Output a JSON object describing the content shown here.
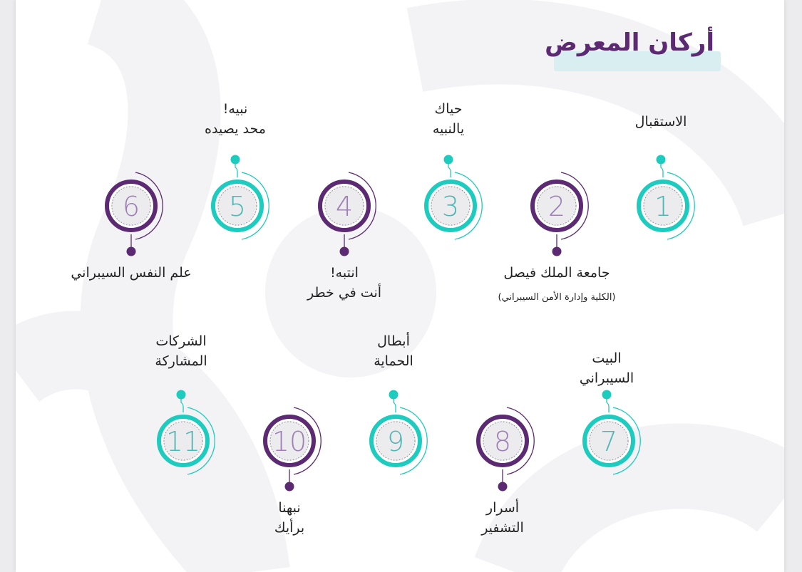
{
  "title": "أركان المعرض",
  "colors": {
    "teal": "#1ecbbf",
    "purple": "#5b2a72",
    "num_teal": "#4fb7b5",
    "num_purple": "#9e7fb6",
    "inner_fill": "#ecebee"
  },
  "stations": [
    {
      "number": "1",
      "label": [
        "الاستقبال"
      ],
      "subtitle": "",
      "color": "teal"
    },
    {
      "number": "2",
      "label": [
        "جامعة الملك فيصل"
      ],
      "subtitle": "(الكلية وإدارة الأمن السيبراني)",
      "color": "purple"
    },
    {
      "number": "3",
      "label": [
        "حياك",
        "يالنبيه"
      ],
      "subtitle": "",
      "color": "teal"
    },
    {
      "number": "4",
      "label": [
        "انتبه!",
        "أنت في خطر"
      ],
      "subtitle": "",
      "color": "purple"
    },
    {
      "number": "5",
      "label": [
        "نبيه!",
        "محد يصيده"
      ],
      "subtitle": "",
      "color": "teal"
    },
    {
      "number": "6",
      "label": [
        "علم النفس السيبراني"
      ],
      "subtitle": "",
      "color": "purple"
    },
    {
      "number": "7",
      "label": [
        "البيت",
        "السيبراني"
      ],
      "subtitle": "",
      "color": "teal"
    },
    {
      "number": "8",
      "label": [
        "أسرار",
        "التشفير"
      ],
      "subtitle": "",
      "color": "purple"
    },
    {
      "number": "9",
      "label": [
        "أبطال",
        "الحماية"
      ],
      "subtitle": "",
      "color": "teal"
    },
    {
      "number": "10",
      "label": [
        "نبهنا",
        "برأيك"
      ],
      "subtitle": "",
      "color": "purple"
    },
    {
      "number": "11",
      "label": [
        "الشركات",
        "المشاركة"
      ],
      "subtitle": "",
      "color": "teal"
    }
  ]
}
